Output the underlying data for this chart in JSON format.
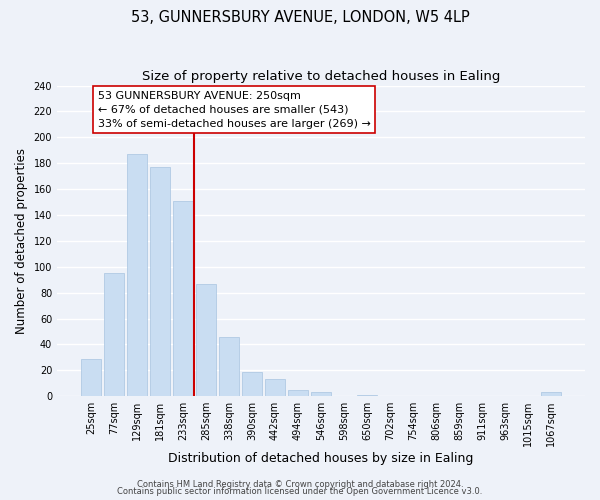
{
  "title": "53, GUNNERSBURY AVENUE, LONDON, W5 4LP",
  "subtitle": "Size of property relative to detached houses in Ealing",
  "xlabel": "Distribution of detached houses by size in Ealing",
  "ylabel": "Number of detached properties",
  "bar_labels": [
    "25sqm",
    "77sqm",
    "129sqm",
    "181sqm",
    "233sqm",
    "285sqm",
    "338sqm",
    "390sqm",
    "442sqm",
    "494sqm",
    "546sqm",
    "598sqm",
    "650sqm",
    "702sqm",
    "754sqm",
    "806sqm",
    "859sqm",
    "911sqm",
    "963sqm",
    "1015sqm",
    "1067sqm"
  ],
  "bar_values": [
    29,
    95,
    187,
    177,
    151,
    87,
    46,
    19,
    13,
    5,
    3,
    0,
    1,
    0,
    0,
    0,
    0,
    0,
    0,
    0,
    3
  ],
  "bar_color": "#c9ddf2",
  "bar_edge_color": "#a8c4e0",
  "vline_x": 4.5,
  "vline_color": "#cc0000",
  "annotation_title": "53 GUNNERSBURY AVENUE: 250sqm",
  "annotation_line1": "← 67% of detached houses are smaller (543)",
  "annotation_line2": "33% of semi-detached houses are larger (269) →",
  "annotation_box_facecolor": "#ffffff",
  "annotation_box_edgecolor": "#cc0000",
  "ylim": [
    0,
    240
  ],
  "yticks": [
    0,
    20,
    40,
    60,
    80,
    100,
    120,
    140,
    160,
    180,
    200,
    220,
    240
  ],
  "footer1": "Contains HM Land Registry data © Crown copyright and database right 2024.",
  "footer2": "Contains public sector information licensed under the Open Government Licence v3.0.",
  "background_color": "#eef2f9",
  "grid_color": "#ffffff",
  "title_fontsize": 10.5,
  "subtitle_fontsize": 9.5,
  "xlabel_fontsize": 9,
  "ylabel_fontsize": 8.5,
  "tick_fontsize": 7,
  "annotation_fontsize": 8,
  "footer_fontsize": 6
}
